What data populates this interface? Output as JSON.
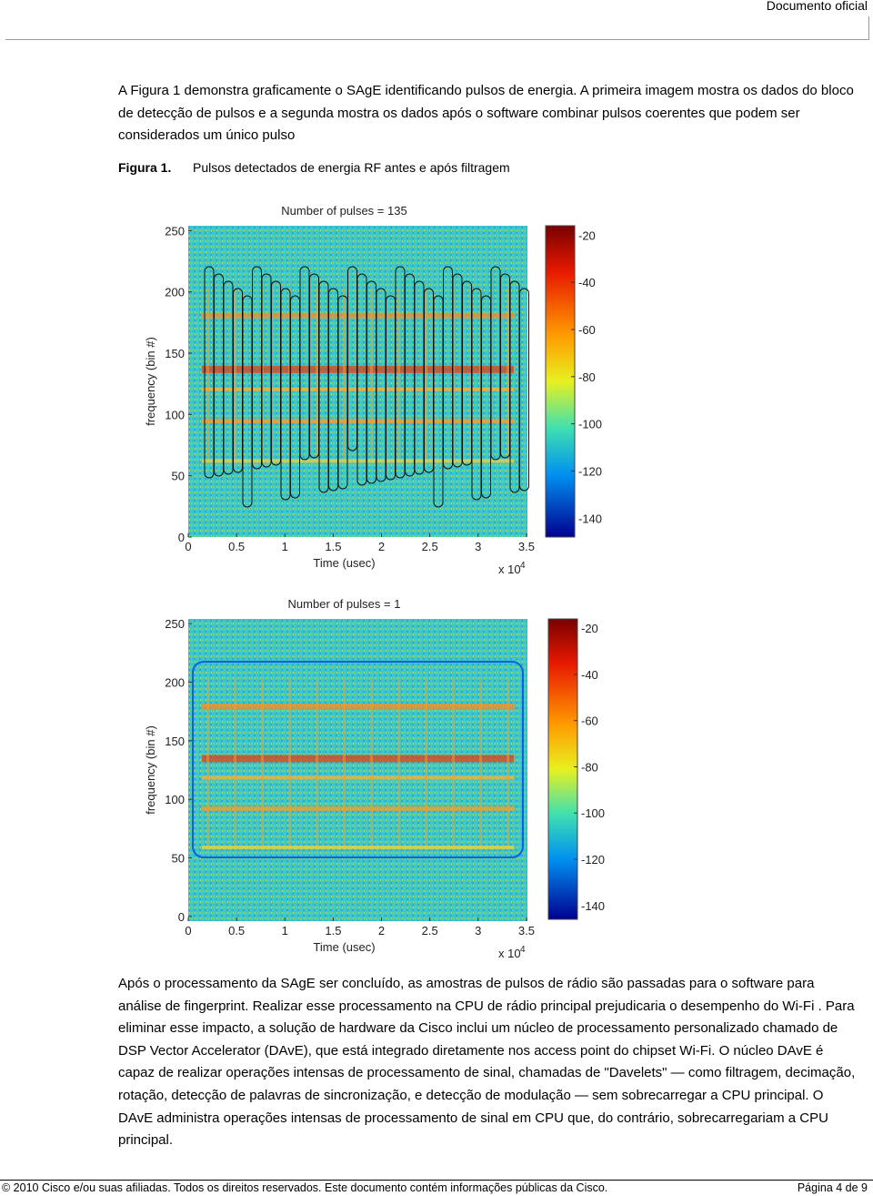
{
  "header": {
    "label": "Documento oficial"
  },
  "intro": "A Figura 1 demonstra graficamente o SAgE identificando pulsos de energia. A primeira imagem mostra os dados do bloco de detecção de pulsos e a segunda mostra os dados após o software combinar pulsos coerentes que podem ser considerados um único pulso",
  "figure": {
    "label": "Figura 1.",
    "caption": "Pulsos detectados de energia RF antes e após filtragem",
    "plots": [
      {
        "title": "Number of pulses = 135",
        "xlabel": "Time (usec)",
        "ylabel": "frequency (bin #)",
        "x_scale": {
          "base": "x 10",
          "exponent": "4"
        },
        "xlim": [
          0,
          3.51
        ],
        "xticks": [
          0,
          0.5,
          1,
          1.5,
          2,
          2.5,
          3,
          3.5
        ],
        "ylim": [
          0,
          254
        ],
        "yticks": [
          0,
          50,
          100,
          150,
          200,
          250
        ],
        "clim": [
          -16,
          -148
        ],
        "cticks": [
          -20,
          -40,
          -60,
          -80,
          -100,
          -120,
          -140
        ]
      },
      {
        "title": "Number of pulses = 1",
        "xlabel": "Time (usec)",
        "ylabel": "frequency (bin #)",
        "x_scale": {
          "base": "x 10",
          "exponent": "4"
        },
        "xlim": [
          0,
          3.51
        ],
        "xticks": [
          0,
          0.5,
          1,
          1.5,
          2,
          2.5,
          3,
          3.5
        ],
        "ylim": [
          -4,
          254
        ],
        "yticks": [
          0,
          50,
          100,
          150,
          200,
          250
        ],
        "clim": [
          -16,
          -146
        ],
        "cticks": [
          -20,
          -40,
          -60,
          -80,
          -100,
          -120,
          -140
        ]
      }
    ]
  },
  "body": "Após o processamento da SAgE ser concluído, as amostras de pulsos de rádio são passadas para o software para análise de fingerprint. Realizar esse processamento na CPU de rádio principal prejudicaria o desempenho do Wi-Fi . Para eliminar esse impacto, a solução de hardware da Cisco inclui um núcleo de processamento personalizado chamado de DSP Vector Accelerator (DAvE), que está integrado diretamente nos access point do chipset Wi-Fi. O núcleo DAvE é capaz de realizar operações intensas de processamento de sinal, chamadas de \"Davelets\" — como filtragem, decimação, rotação, detecção de palavras de sincronização, e detecção de modulação — sem sobrecarregar a CPU principal. O DAvE administra operações intensas de processamento de sinal em CPU que, do contrário, sobrecarregariam a CPU principal.",
  "footer": {
    "left": "© 2010 Cisco e/ou suas afiliadas. Todos os direitos reservados. Este documento contém informações públicas da Cisco.",
    "right": "Página 4 de 9"
  }
}
